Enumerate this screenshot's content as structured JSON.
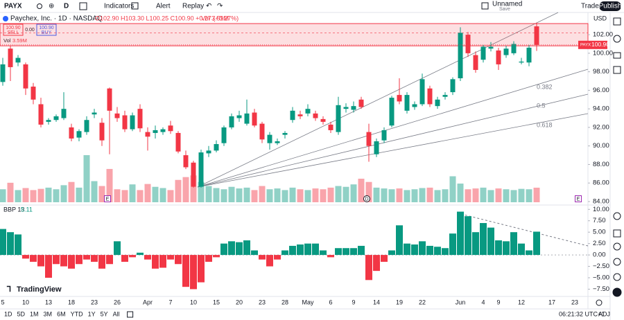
{
  "toolbar": {
    "symbol": "PAYX",
    "interval": "D",
    "indicators": "Indicators",
    "alert": "Alert",
    "replay": "Replay",
    "layout_name": "Unnamed",
    "layout_status": "Save",
    "trade": "Trade",
    "publish": "Publish"
  },
  "legend": {
    "title": "Paychex, Inc. · 1D · NASDAQ",
    "ohlc_text": "O102.90 H103.30 L100.25 C100.90 +0.27 (+0.27%)",
    "volume_text": "Vol 3.59M",
    "volume_label": "Vol",
    "volume_value": "3.59M"
  },
  "trade_widget": {
    "sell_price": "100.90",
    "sell": "SELL",
    "spread": "0.00",
    "buy_price": "100.90",
    "buy": "BUY"
  },
  "chart_data": {
    "type": "candlestick",
    "currency": "USD",
    "categories": [
      "5",
      null,
      null,
      "10",
      null,
      null,
      "13",
      null,
      null,
      "18",
      null,
      null,
      "23",
      null,
      null,
      "26",
      null,
      null,
      null,
      "Apr",
      null,
      null,
      "7",
      null,
      null,
      "10",
      null,
      null,
      "15",
      null,
      null,
      "20",
      null,
      null,
      "23",
      null,
      null,
      "28",
      null,
      null,
      "May",
      null,
      null,
      "6",
      null,
      null,
      "9",
      null,
      null,
      "14",
      null,
      null,
      "19",
      null,
      null,
      "22",
      null,
      null,
      null,
      null,
      "Jun",
      null,
      null,
      "4",
      null,
      "9",
      null,
      null,
      "12",
      null,
      null,
      null,
      "17",
      null,
      null,
      "23"
    ],
    "open": [
      96.9,
      100.5,
      99.0,
      98.8,
      96.4,
      94.5,
      92.6,
      92.8,
      93.0,
      92.0,
      90.9,
      91.5,
      93.4,
      92.5,
      96.2,
      93.5,
      93.3,
      91.8,
      94.0,
      91.5,
      91.4,
      91.5,
      92.2,
      91.4,
      89.0,
      88.2,
      85.6,
      89.2,
      89.5,
      90.3,
      92.0,
      93.0,
      92.4,
      93.6,
      92.4,
      90.3,
      90.3,
      91.2,
      92.8,
      93.4,
      93.5,
      93.5,
      92.9,
      92.3,
      91.5,
      94.0,
      93.9,
      95.0,
      91.5,
      89.1,
      90.6,
      92.2,
      95.5,
      93.8,
      94.2,
      94.5,
      96.2,
      94.3,
      95.3,
      95.8,
      97.3,
      102.0,
      99.8,
      99.3,
      100.5,
      100.3,
      99.8,
      100.0,
      99.0,
      99.0,
      102.9,
      null,
      null,
      null,
      null,
      null
    ],
    "high": [
      99.5,
      100.8,
      99.8,
      99.0,
      96.8,
      95.2,
      93.0,
      93.4,
      95.8,
      92.4,
      91.8,
      93.2,
      94.0,
      93.0,
      96.3,
      94.2,
      93.8,
      93.6,
      94.5,
      92.0,
      92.2,
      92.0,
      92.7,
      91.6,
      89.5,
      88.4,
      89.6,
      90.0,
      90.6,
      92.2,
      93.5,
      93.8,
      95.0,
      94.0,
      92.6,
      91.5,
      90.8,
      91.6,
      94.2,
      93.8,
      94.5,
      93.8,
      93.2,
      92.6,
      95.3,
      94.6,
      94.8,
      95.3,
      92.4,
      90.8,
      92.0,
      95.4,
      97.3,
      95.8,
      94.8,
      97.8,
      96.5,
      95.3,
      95.8,
      97.4,
      102.8,
      102.3,
      100.2,
      100.9,
      101.2,
      100.6,
      100.8,
      101.3,
      99.5,
      100.9,
      103.3,
      null,
      null,
      null,
      null,
      null
    ],
    "low": [
      96.5,
      97.0,
      98.6,
      95.5,
      94.5,
      92.0,
      92.3,
      92.6,
      92.8,
      90.5,
      90.5,
      91.2,
      93.0,
      90.0,
      89.1,
      92.6,
      91.5,
      91.6,
      91.5,
      89.5,
      90.8,
      91.2,
      91.3,
      89.2,
      87.5,
      85.5,
      85.5,
      88.8,
      89.3,
      90.0,
      91.8,
      92.6,
      92.2,
      92.0,
      90.3,
      89.6,
      90.1,
      90.8,
      92.5,
      92.9,
      93.2,
      92.7,
      92.3,
      91.4,
      91.2,
      93.6,
      93.6,
      94.0,
      88.3,
      88.8,
      90.3,
      92.0,
      94.5,
      93.5,
      93.9,
      94.3,
      94.2,
      94.0,
      95.0,
      95.5,
      97.0,
      99.6,
      97.9,
      99.0,
      100.2,
      98.2,
      99.5,
      99.8,
      98.8,
      98.6,
      100.25,
      null,
      null,
      null,
      null,
      null
    ],
    "close": [
      98.8,
      98.5,
      99.5,
      96.2,
      95.0,
      92.3,
      92.8,
      93.2,
      94.0,
      90.8,
      91.6,
      92.8,
      93.6,
      90.6,
      93.8,
      93.0,
      91.8,
      93.3,
      91.9,
      91.0,
      91.7,
      91.8,
      91.6,
      89.4,
      87.7,
      85.6,
      89.3,
      89.5,
      90.2,
      92.0,
      93.2,
      93.3,
      93.5,
      92.2,
      90.7,
      91.2,
      90.5,
      91.4,
      93.8,
      93.2,
      94.0,
      93.0,
      92.6,
      91.7,
      94.4,
      94.2,
      94.3,
      94.2,
      90.0,
      90.5,
      91.7,
      95.2,
      94.8,
      95.5,
      94.5,
      97.2,
      94.5,
      95.0,
      95.5,
      97.2,
      102.2,
      100.0,
      98.2,
      100.7,
      100.7,
      98.8,
      100.5,
      101.0,
      99.1,
      100.6,
      100.9,
      null,
      null,
      null,
      null,
      null
    ],
    "up_color": "#089981",
    "down_color": "#f23645",
    "ylim": [
      83.7,
      104.1
    ],
    "yticks": [
      {
        "value": 84,
        "label": "84.00"
      },
      {
        "value": 86,
        "label": "86.00"
      },
      {
        "value": 88,
        "label": "88.00"
      },
      {
        "value": 90,
        "label": "90.00"
      },
      {
        "value": 92,
        "label": "92.00"
      },
      {
        "value": 94,
        "label": "94.00"
      },
      {
        "value": 96,
        "label": "96.00"
      },
      {
        "value": 98,
        "label": "98.00"
      },
      {
        "value": 100,
        "label": "100.00"
      },
      {
        "value": 102,
        "label": "102.00"
      }
    ],
    "last_price_tag": {
      "symbol": "PAYX",
      "value": 100.9,
      "label": "100.90"
    },
    "zone": {
      "high": 103.2,
      "mid": 102.2,
      "low": 100.8
    },
    "fib_labels": [
      "0.382",
      "0.5",
      "0.618"
    ],
    "event_labels": [
      "E",
      "D",
      "E"
    ],
    "volume": {
      "values": [
        3.2,
        4.8,
        3.0,
        3.5,
        3.0,
        3.3,
        3.6,
        3.2,
        4.2,
        5.0,
        3.6,
        11.6,
        5.2,
        4.0,
        8.2,
        3.2,
        3.0,
        4.4,
        3.0,
        4.5,
        3.8,
        3.5,
        3.0,
        5.5,
        6.2,
        6.6,
        5.0,
        4.0,
        3.5,
        3.2,
        3.8,
        3.4,
        3.6,
        3.0,
        4.0,
        3.2,
        3.4,
        3.0,
        3.6,
        3.2,
        3.0,
        3.4,
        3.2,
        3.6,
        4.0,
        3.8,
        4.4,
        5.8,
        5.0,
        3.6,
        3.4,
        3.2,
        3.4,
        3.0,
        3.2,
        3.5,
        3.6,
        3.0,
        3.2,
        6.4,
        4.6,
        3.2,
        3.4,
        3.6,
        3.0,
        3.4,
        3.2,
        3.0,
        3.3,
        3.2,
        3.59,
        null,
        null,
        null,
        null,
        null
      ],
      "up_color": "rgba(8,153,129,0.45)",
      "down_color": "rgba(242,54,69,0.45)"
    },
    "indicator": {
      "name": "BBP 13",
      "last_label": "5.11",
      "pos_color": "#089981",
      "neg_color": "#f23645",
      "values": [
        5.7,
        5.0,
        4.5,
        -0.8,
        -1.5,
        -2.5,
        -5.0,
        -2.0,
        -2.5,
        -3.0,
        -2.0,
        -1.0,
        -1.5,
        -3.0,
        -2.0,
        3.0,
        -1.5,
        -0.5,
        0.5,
        -1.0,
        -3.0,
        -2.8,
        -1.0,
        -2.0,
        -7.0,
        -7.5,
        -6.0,
        -1.5,
        -0.5,
        2.5,
        3.0,
        2.8,
        3.2,
        1.0,
        -1.0,
        -2.5,
        -1.0,
        1.0,
        2.0,
        2.3,
        2.5,
        2.5,
        1.0,
        -0.5,
        1.5,
        1.5,
        1.5,
        2.0,
        -5.5,
        -3.5,
        -1.5,
        1.0,
        6.5,
        2.5,
        2.3,
        3.0,
        2.0,
        1.8,
        1.5,
        4.7,
        9.5,
        8.5,
        5.0,
        7.0,
        6.0,
        3.2,
        3.0,
        5.0,
        2.5,
        1.0,
        5.11,
        null,
        null,
        null,
        null,
        null
      ],
      "ylim": [
        -9.1,
        10.8
      ],
      "yticks": [
        {
          "value": -7.5,
          "label": "−7.50"
        },
        {
          "value": -5,
          "label": "−5.00"
        },
        {
          "value": -2.5,
          "label": "−2.50"
        },
        {
          "value": 0,
          "label": "0.00"
        },
        {
          "value": 2.5,
          "label": "2.50"
        },
        {
          "value": 5,
          "label": "5.00"
        },
        {
          "value": 7.5,
          "label": "7.50"
        },
        {
          "value": 10,
          "label": "10.00"
        }
      ]
    }
  },
  "bottom": {
    "ranges": [
      "1D",
      "5D",
      "1M",
      "3M",
      "6M",
      "YTD",
      "1Y",
      "5Y",
      "All"
    ],
    "clock": "06:21:32 UTC+1",
    "adj": "ADJ",
    "brand": "TradingView"
  }
}
